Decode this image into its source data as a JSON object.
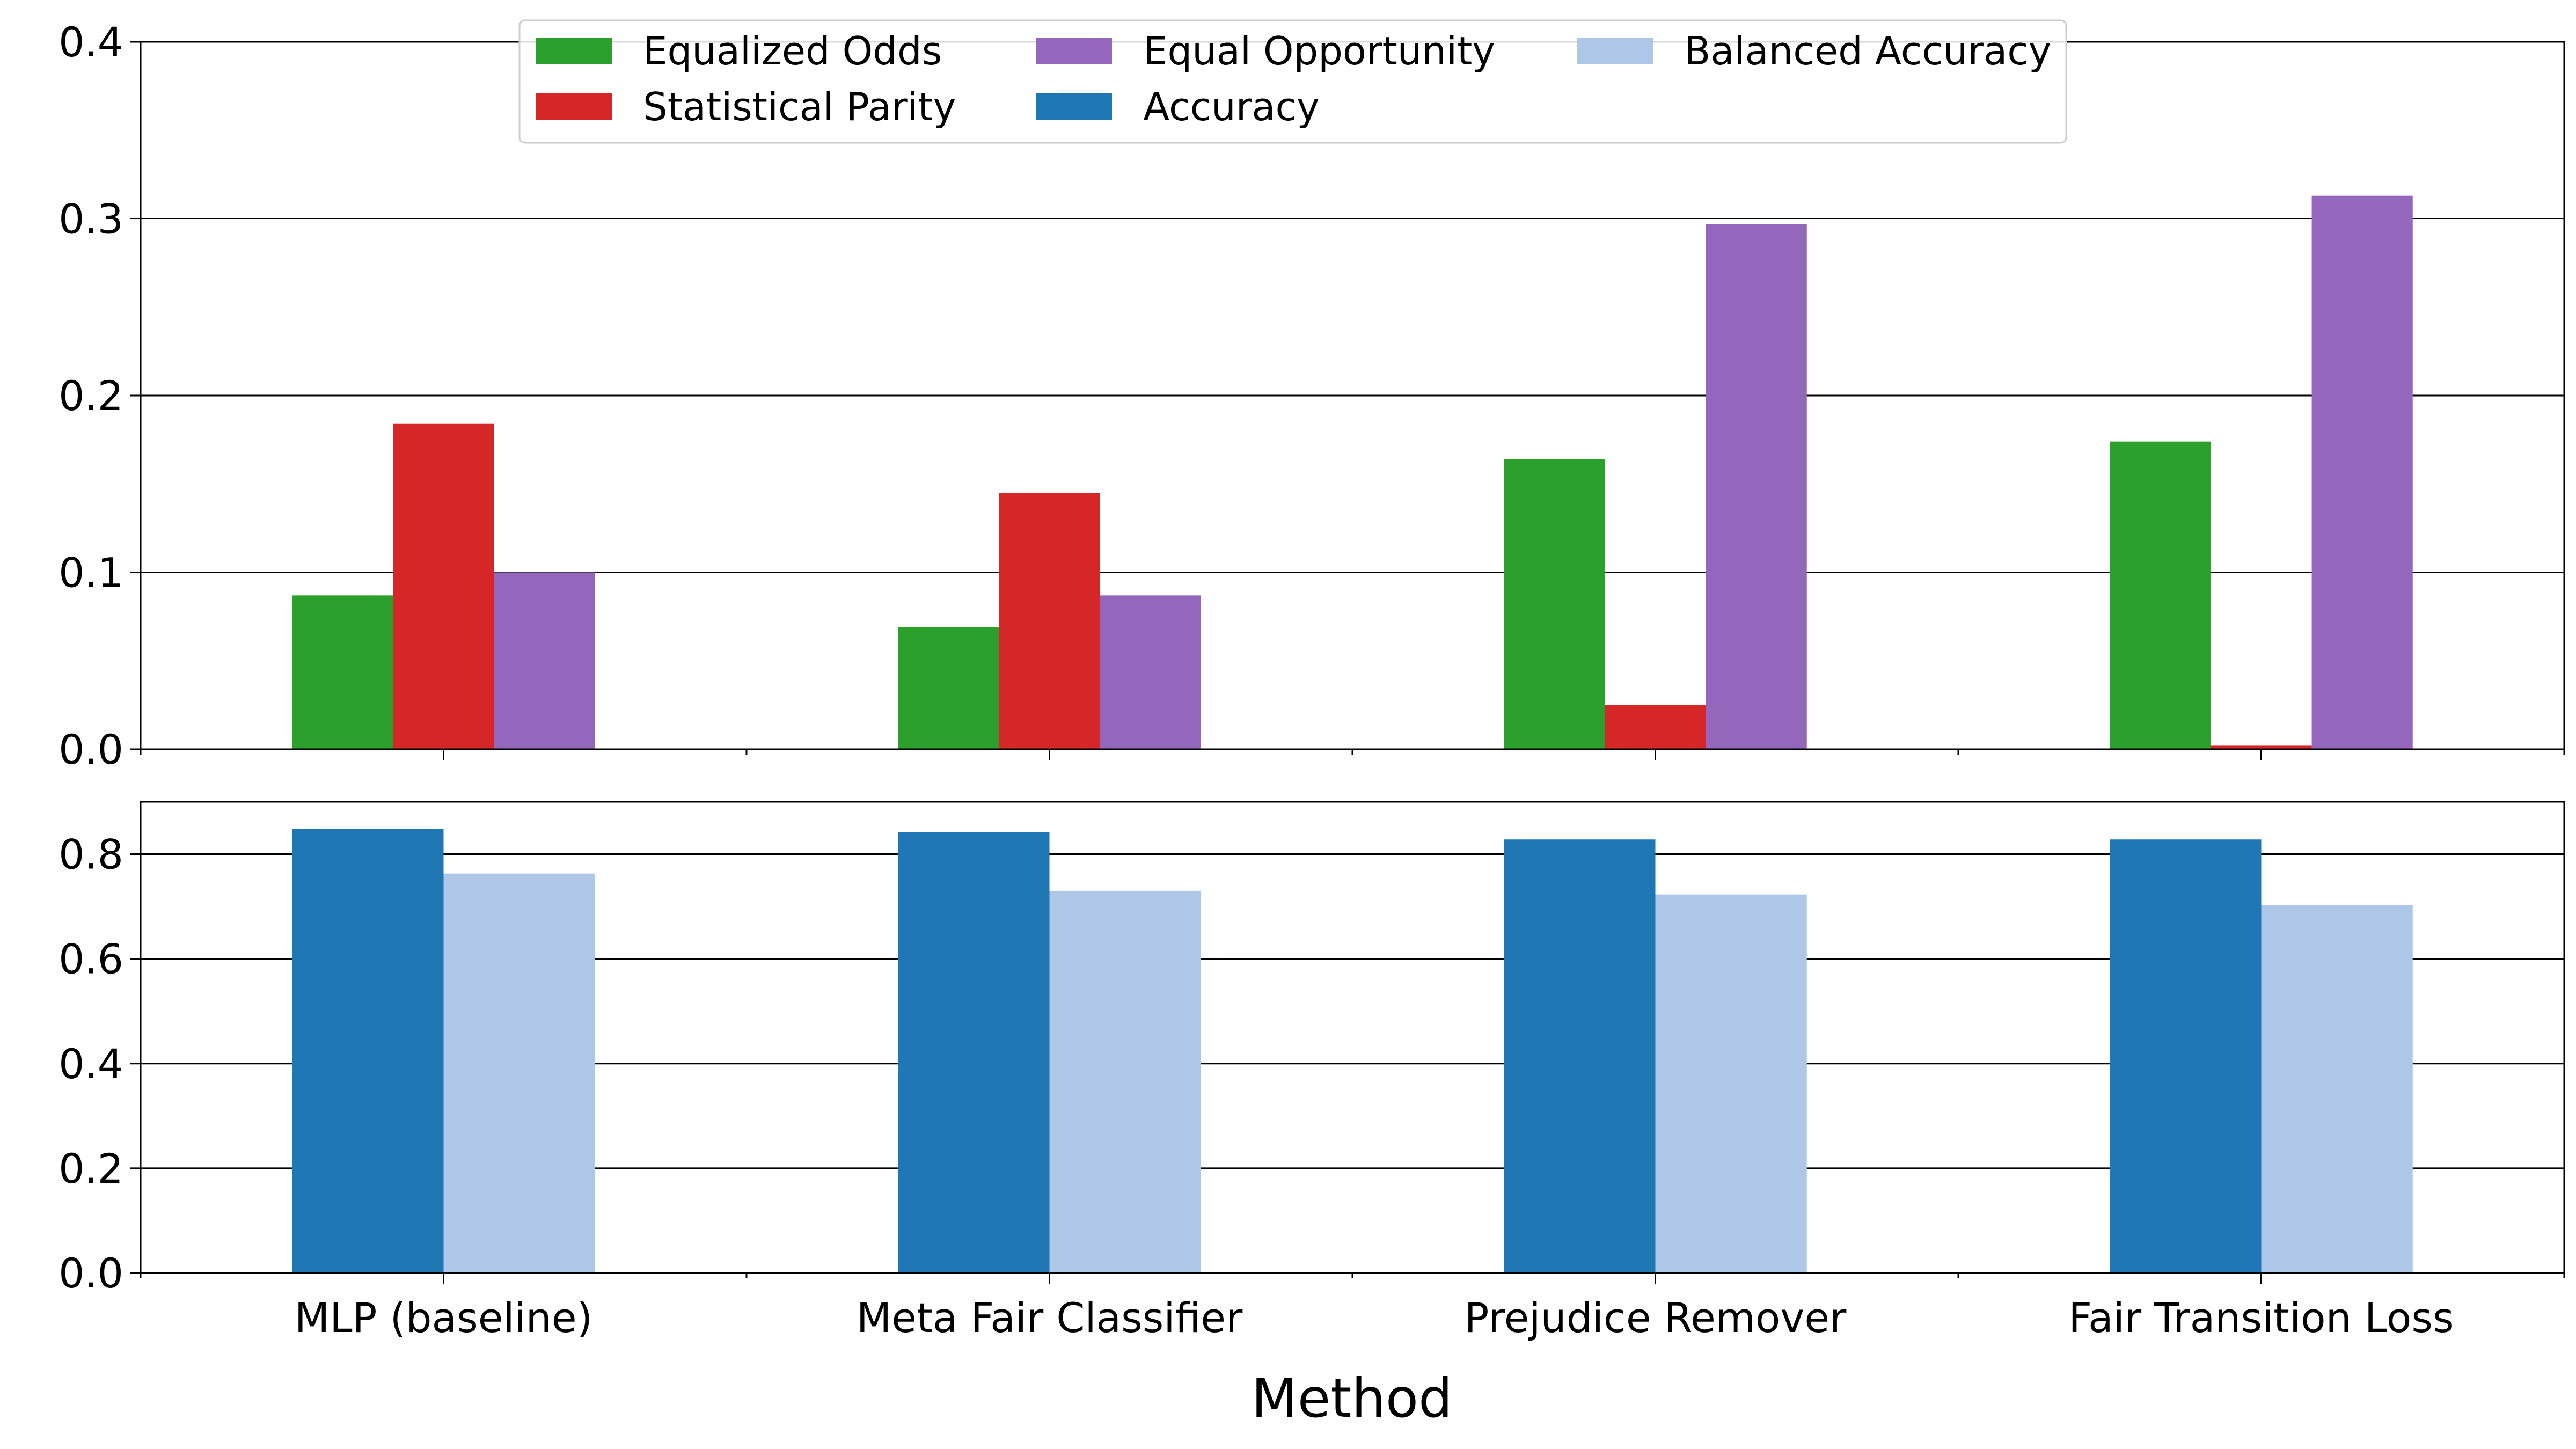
{
  "chart_data": [
    {
      "type": "bar",
      "categories": [
        "MLP (baseline)",
        "Meta Fair Classifier",
        "Prejudice Remover",
        "Fair Transition Loss"
      ],
      "series": [
        {
          "name": "Equalized Odds",
          "color": "#2ca02c",
          "values": [
            0.087,
            0.069,
            0.164,
            0.174
          ]
        },
        {
          "name": "Statistical Parity",
          "color": "#d62728",
          "values": [
            0.184,
            0.145,
            0.025,
            0.002
          ]
        },
        {
          "name": "Equal Opportunity",
          "color": "#9467bd",
          "values": [
            0.1,
            0.087,
            0.297,
            0.313
          ]
        }
      ],
      "ylim": [
        0,
        0.4
      ],
      "yticks": [
        "0.0",
        "0.1",
        "0.2",
        "0.3",
        "0.4"
      ],
      "grid": "horizontal",
      "legend_position": "top"
    },
    {
      "type": "bar",
      "categories": [
        "MLP (baseline)",
        "Meta Fair Classifier",
        "Prejudice Remover",
        "Fair Transition Loss"
      ],
      "series": [
        {
          "name": "Accuracy",
          "color": "#1f77b4",
          "values": [
            0.848,
            0.842,
            0.828,
            0.828
          ]
        },
        {
          "name": "Balanced Accuracy",
          "color": "#aec7e8",
          "values": [
            0.763,
            0.73,
            0.723,
            0.703
          ]
        }
      ],
      "ylim": [
        0,
        0.9
      ],
      "yticks": [
        "0.0",
        "0.2",
        "0.4",
        "0.6",
        "0.8"
      ],
      "grid": "horizontal",
      "xlabel": "Method"
    }
  ],
  "legend": {
    "entries": [
      {
        "label": "Equalized Odds",
        "color": "#2ca02c"
      },
      {
        "label": "Statistical Parity",
        "color": "#d62728"
      },
      {
        "label": "Equal Opportunity",
        "color": "#9467bd"
      },
      {
        "label": "Accuracy",
        "color": "#1f77b4"
      },
      {
        "label": "Balanced Accuracy",
        "color": "#aec7e8"
      }
    ]
  }
}
